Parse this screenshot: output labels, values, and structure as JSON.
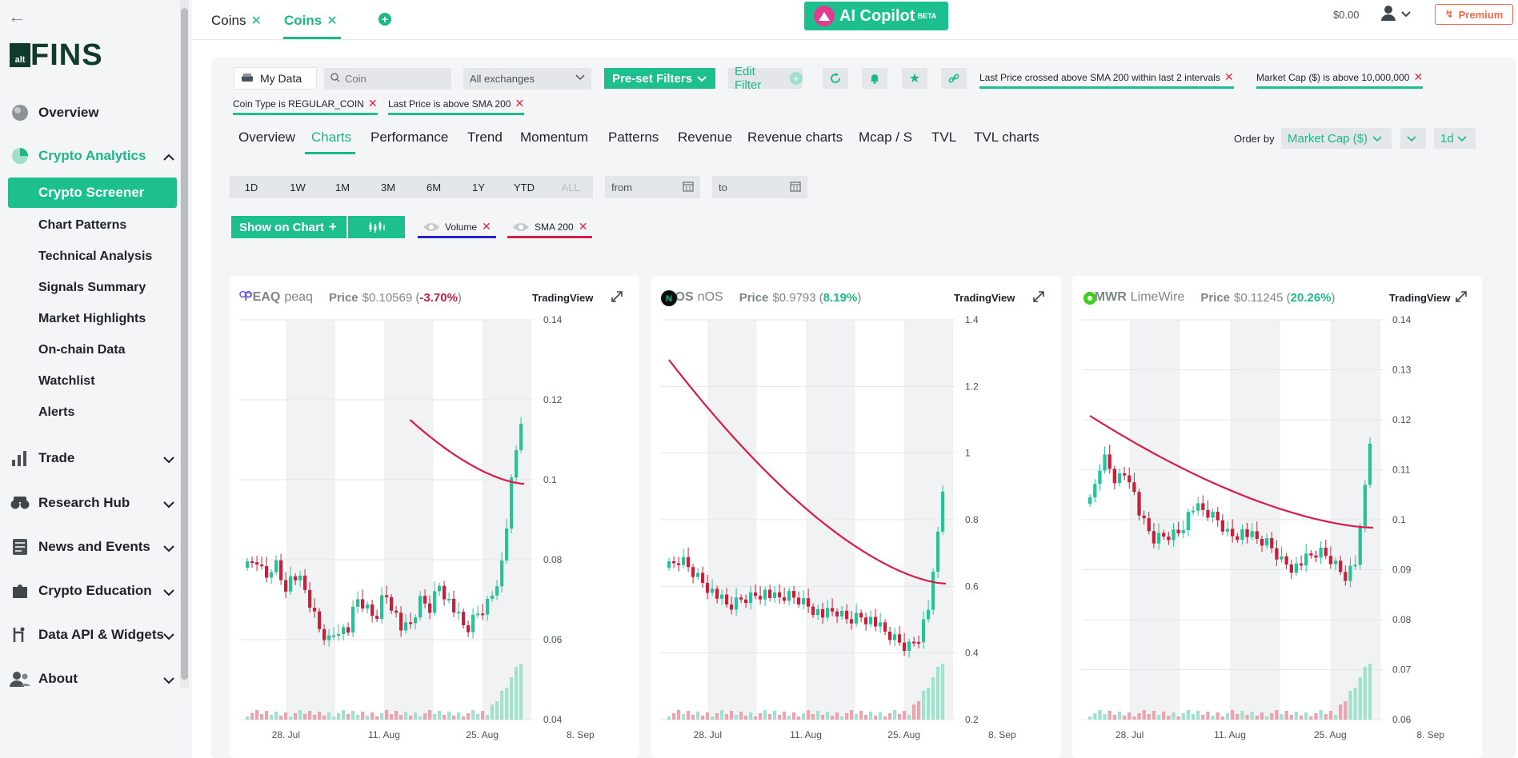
{
  "sidebar": {
    "logo_small": "alt",
    "logo_text": "FINS",
    "items": [
      {
        "label": "Overview"
      },
      {
        "label": "Crypto Analytics"
      },
      {
        "label": "Trade"
      },
      {
        "label": "Research Hub"
      },
      {
        "label": "News and Events"
      },
      {
        "label": "Crypto Education"
      },
      {
        "label": "Data API & Widgets"
      },
      {
        "label": "About"
      }
    ],
    "sub_items": [
      {
        "label": "Crypto Screener"
      },
      {
        "label": "Chart Patterns"
      },
      {
        "label": "Technical Analysis"
      },
      {
        "label": "Signals Summary"
      },
      {
        "label": "Market Highlights"
      },
      {
        "label": "On-chain Data"
      },
      {
        "label": "Watchlist"
      },
      {
        "label": "Alerts"
      }
    ]
  },
  "topbar": {
    "tabs": [
      {
        "label": "Coins"
      },
      {
        "label": "Coins"
      }
    ],
    "copilot_label": "AI Copilot",
    "copilot_badge": "BETA",
    "balance": "$0.00",
    "premium_label": "Premium"
  },
  "filters": {
    "my_data": "My Data",
    "search_placeholder": "Coin",
    "exchange": "All exchanges",
    "preset": "Pre-set Filters",
    "edit": "Edit Filter",
    "chips": [
      "Last Price crossed above SMA 200 within last 2 intervals",
      "Market Cap ($) is above 10,000,000",
      "Coin Type is REGULAR_COIN",
      "Last Price is above SMA 200"
    ]
  },
  "subtabs": [
    "Overview",
    "Charts",
    "Performance",
    "Trend",
    "Momentum",
    "Patterns",
    "Revenue",
    "Revenue charts",
    "Mcap / S",
    "TVL",
    "TVL charts"
  ],
  "order": {
    "label": "Order by",
    "field": "Market Cap ($)",
    "interval": "1d"
  },
  "periods": [
    "1D",
    "1W",
    "1M",
    "3M",
    "6M",
    "1Y",
    "YTD",
    "ALL"
  ],
  "date_from": "from",
  "date_to": "to",
  "show_on_chart": "Show on Chart",
  "indicators": [
    {
      "label": "Volume",
      "color": "#2323c8"
    },
    {
      "label": "SMA 200",
      "color": "#d81b47"
    }
  ],
  "colors": {
    "accent": "#1ebf8f",
    "up": "#26c39b",
    "down": "#c8203a",
    "sma": "#d81b47"
  },
  "charts": [
    {
      "symbol": "PEAQ",
      "name": "peaq",
      "price_label": "Price",
      "price": "$0.10569",
      "change": "-3.70%",
      "change_dir": "down",
      "tv": "TradingView",
      "y_ticks": [
        "0.14",
        "0.12",
        "0.1",
        "0.08",
        "0.06",
        "0.04"
      ],
      "x_ticks": [
        "28. Jul",
        "11. Aug",
        "25. Aug",
        "8. Sep"
      ]
    },
    {
      "symbol": "NOS",
      "name": "nOS",
      "price_label": "Price",
      "price": "$0.9793",
      "change": "8.19%",
      "change_dir": "up",
      "tv": "TradingView",
      "y_ticks": [
        "1.4",
        "1.2",
        "1",
        "0.8",
        "0.6",
        "0.4",
        "0.2"
      ],
      "x_ticks": [
        "28. Jul",
        "11. Aug",
        "25. Aug",
        "8. Sep"
      ]
    },
    {
      "symbol": "LMWR",
      "name": "LimeWire",
      "price_label": "Price",
      "price": "$0.11245",
      "change": "20.26%",
      "change_dir": "up",
      "tv": "TradingView",
      "y_ticks": [
        "0.14",
        "0.13",
        "0.12",
        "0.11",
        "0.1",
        "0.09",
        "0.08",
        "0.07",
        "0.06"
      ],
      "x_ticks": [
        "28. Jul",
        "11. Aug",
        "25. Aug",
        "8. Sep"
      ]
    }
  ]
}
